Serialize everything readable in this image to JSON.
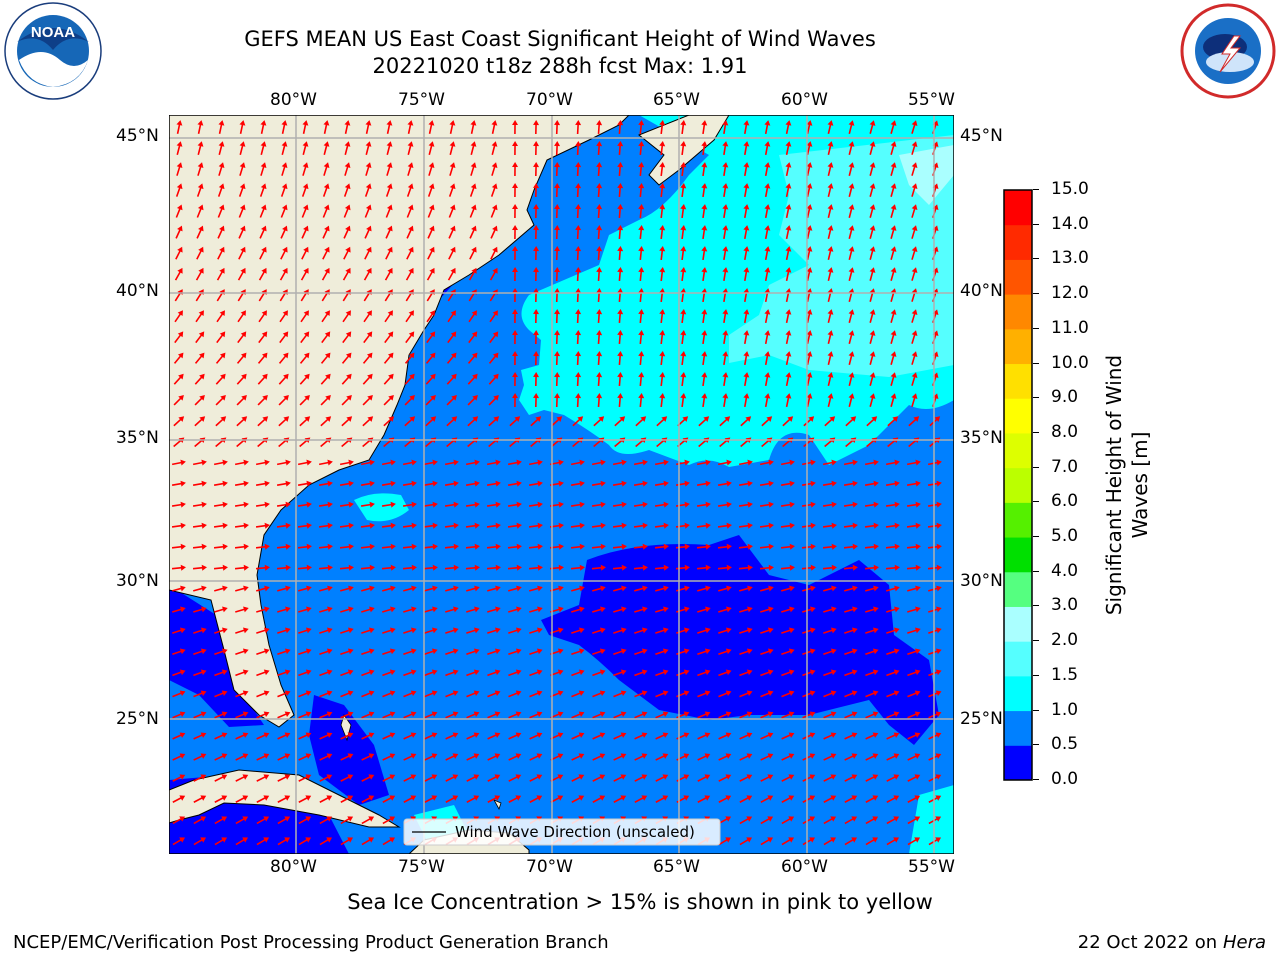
{
  "header": {
    "title_line1": "GEFS MEAN US East Coast Significant Height of Wind Waves",
    "title_line2": "20221020 t18z 288h fcst   Max: 1.91"
  },
  "logos": {
    "left": "NOAA",
    "left_ring": "NATIONAL OCEANIC AND ATMOSPHERIC ADMINISTRATION",
    "left_ring_bottom": "U.S. DEPARTMENT OF COMMERCE",
    "right": "NATIONAL WEATHER SERVICE"
  },
  "map": {
    "lon_labels": [
      "80°W",
      "75°W",
      "70°W",
      "65°W",
      "60°W",
      "55°W"
    ],
    "lat_labels": [
      "45°N",
      "40°N",
      "35°N",
      "30°N",
      "25°N"
    ],
    "legend_label": "Wind Wave Direction (unscaled)",
    "colors": {
      "land": "#efedda",
      "coast": "#000000",
      "grid": "#b0b0b0",
      "arrow": "#ff0000"
    }
  },
  "colorbar": {
    "label": "Significant Height of Wind Waves [m]",
    "label_line1": "Significant Height of Wind",
    "label_line2": "Waves [m]",
    "ticks": [
      "0.0",
      "0.5",
      "1.0",
      "1.5",
      "2.0",
      "3.0",
      "4.0",
      "5.0",
      "6.0",
      "7.0",
      "8.0",
      "9.0",
      "10.0",
      "11.0",
      "12.0",
      "13.0",
      "14.0",
      "15.0"
    ],
    "bins": [
      {
        "min": 0.0,
        "max": 0.5,
        "color": "#0000ff"
      },
      {
        "min": 0.5,
        "max": 1.0,
        "color": "#0080ff"
      },
      {
        "min": 1.0,
        "max": 1.5,
        "color": "#00ffff"
      },
      {
        "min": 1.5,
        "max": 2.0,
        "color": "#55ffff"
      },
      {
        "min": 2.0,
        "max": 3.0,
        "color": "#aaffff"
      },
      {
        "min": 3.0,
        "max": 4.0,
        "color": "#55ff80"
      },
      {
        "min": 4.0,
        "max": 5.0,
        "color": "#00e000"
      },
      {
        "min": 5.0,
        "max": 6.0,
        "color": "#55f000"
      },
      {
        "min": 6.0,
        "max": 7.0,
        "color": "#bbff00"
      },
      {
        "min": 7.0,
        "max": 8.0,
        "color": "#ddff00"
      },
      {
        "min": 8.0,
        "max": 9.0,
        "color": "#ffff00"
      },
      {
        "min": 9.0,
        "max": 10.0,
        "color": "#ffe000"
      },
      {
        "min": 10.0,
        "max": 11.0,
        "color": "#ffb000"
      },
      {
        "min": 11.0,
        "max": 12.0,
        "color": "#ff8800"
      },
      {
        "min": 12.0,
        "max": 13.0,
        "color": "#ff5500"
      },
      {
        "min": 13.0,
        "max": 14.0,
        "color": "#ff2a00"
      },
      {
        "min": 14.0,
        "max": 15.0,
        "color": "#ff0000"
      }
    ]
  },
  "footer": {
    "sea_ice_note": "Sea Ice Concentration > 15% is shown in pink to yellow",
    "left": "NCEP/EMC/Verification Post Processing Product Generation Branch",
    "right_prefix": "22 Oct 2022 on ",
    "right_host": "Hera"
  }
}
